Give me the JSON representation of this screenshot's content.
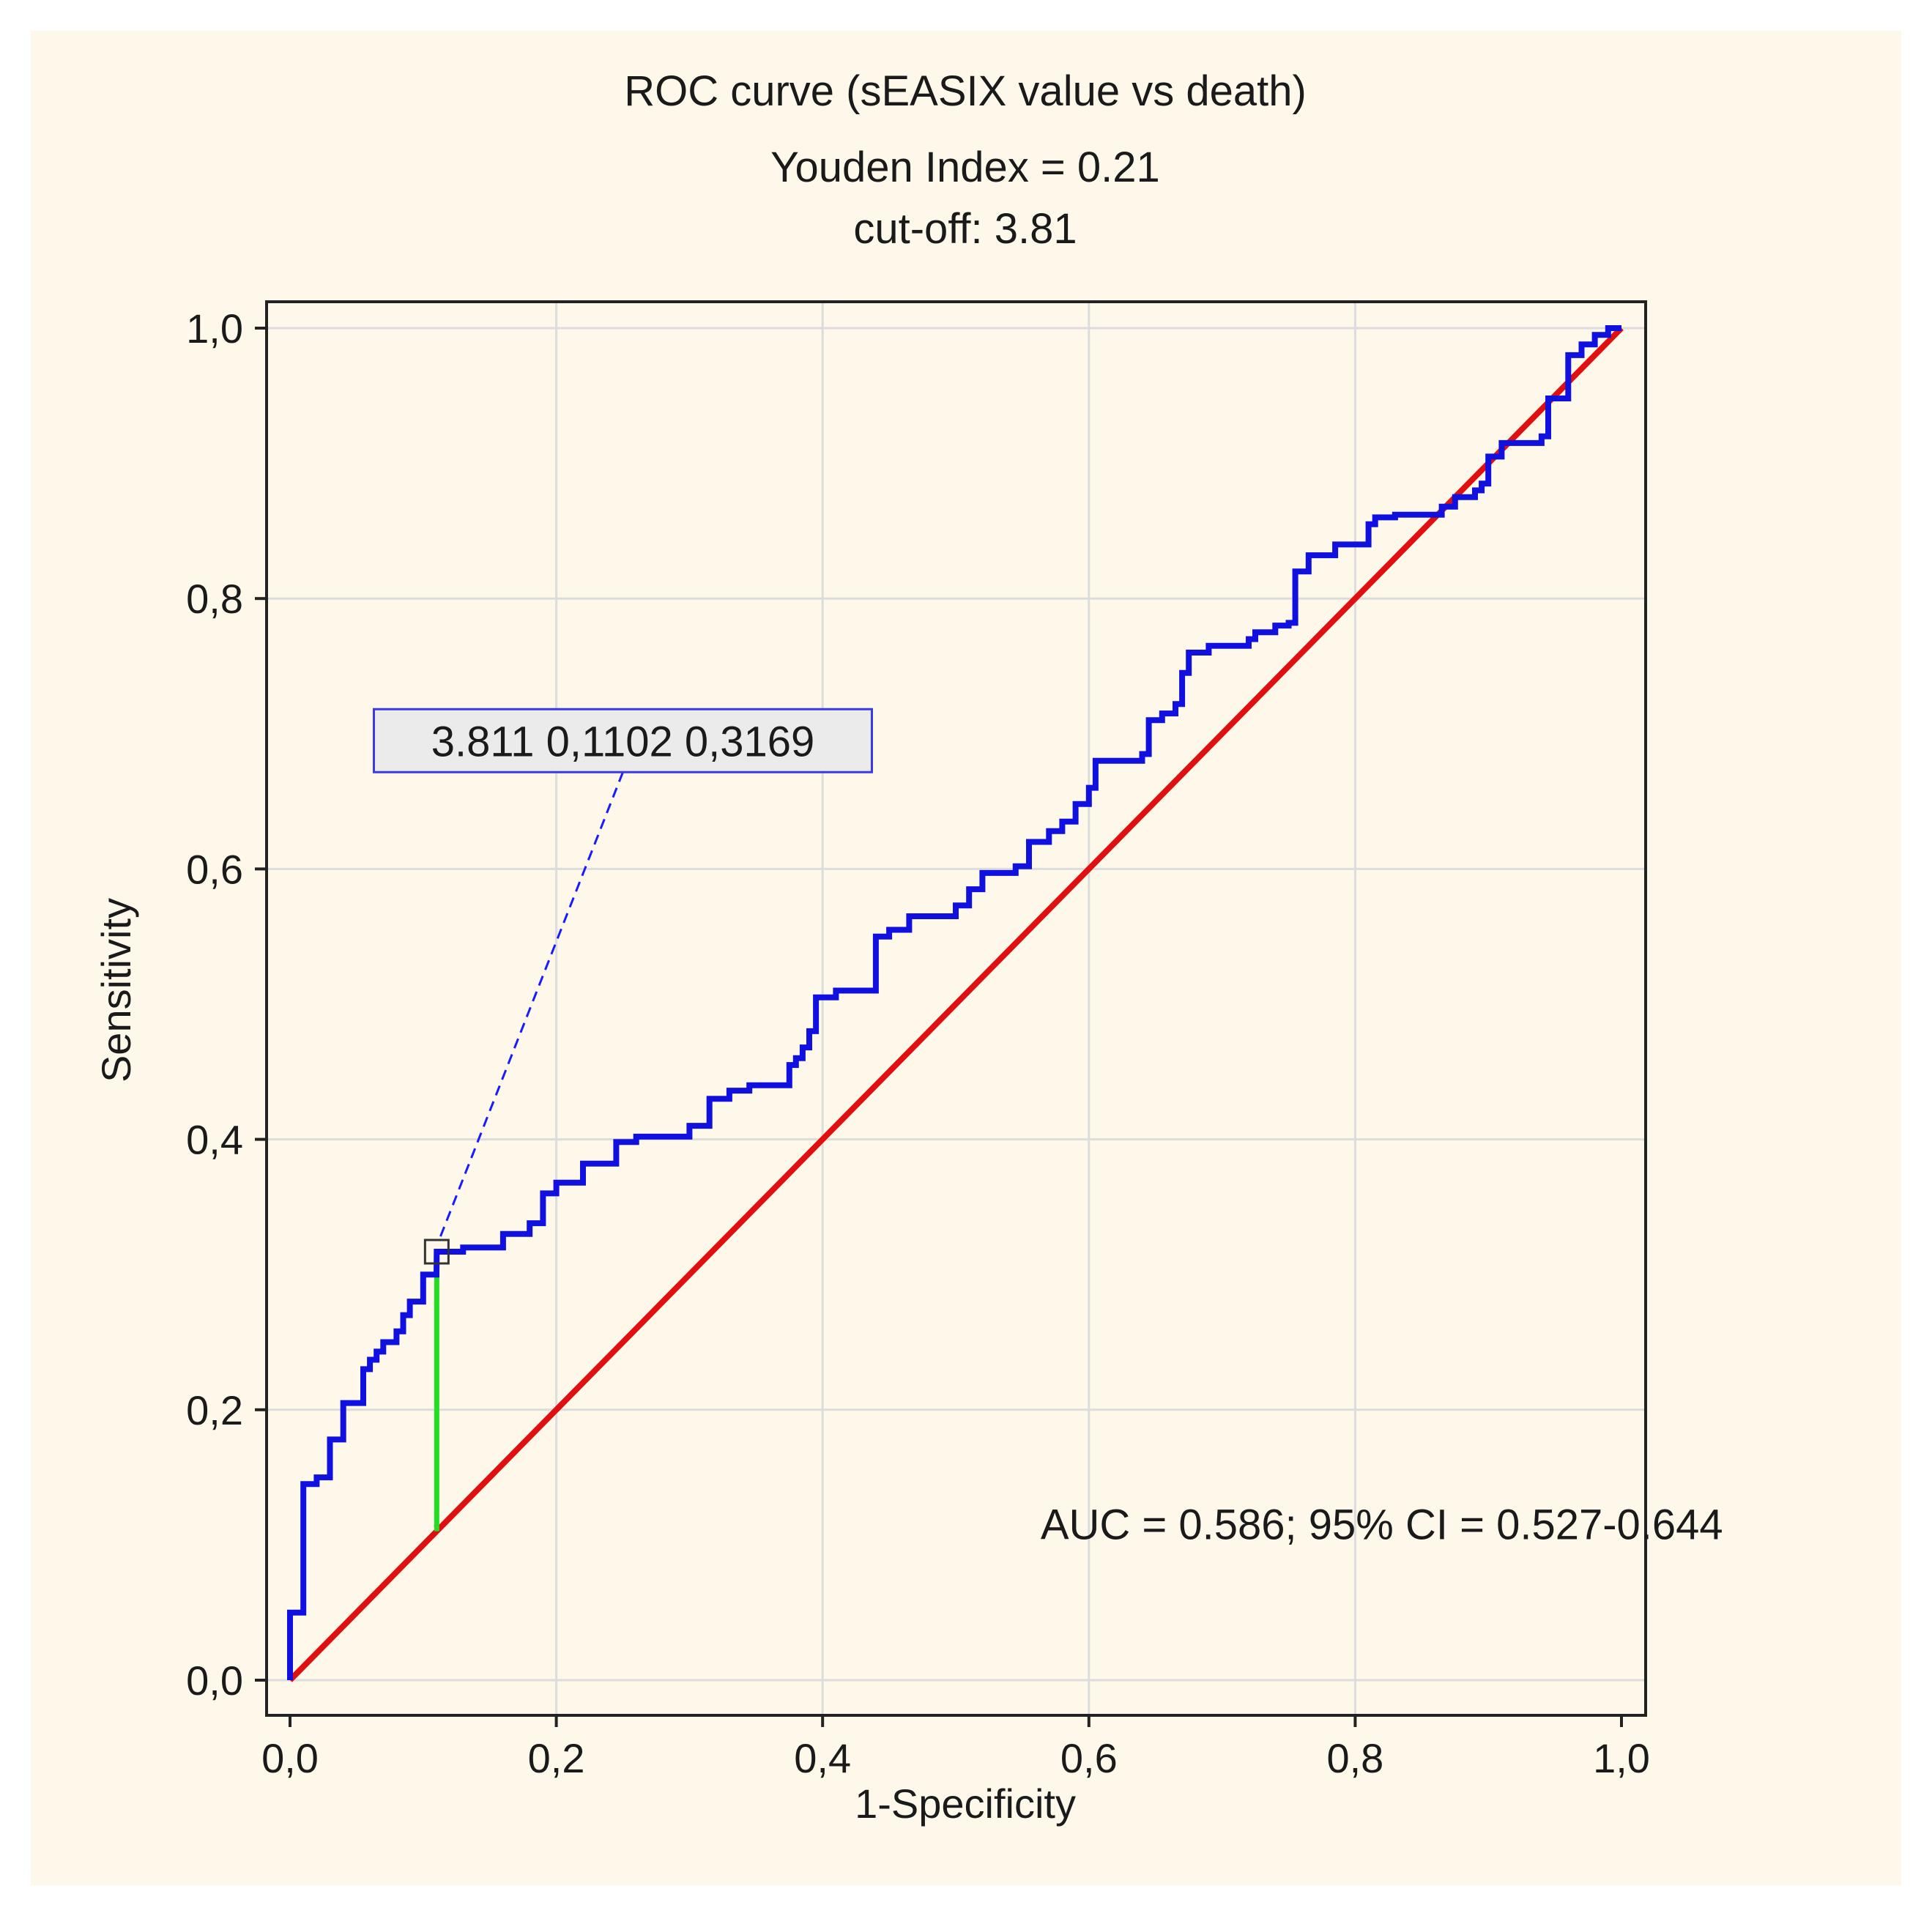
{
  "chart_data": {
    "type": "line",
    "title": "ROC curve (sEASIX value vs death)",
    "subtitle_lines": [
      "Youden Index  = 0.21",
      "cut-off: 3.81"
    ],
    "xlabel": "1-Specificity",
    "ylabel": "Sensitivity",
    "xlim": [
      0,
      1
    ],
    "ylim": [
      0,
      1
    ],
    "grid": true,
    "xticks": [
      0,
      0.2,
      0.4,
      0.6,
      0.8,
      1.0
    ],
    "yticks": [
      0,
      0.2,
      0.4,
      0.6,
      0.8,
      1.0
    ],
    "xtick_labels": [
      "0,0",
      "0,2",
      "0,4",
      "0,6",
      "0,8",
      "1,0"
    ],
    "ytick_labels": [
      "0,0",
      "0,2",
      "0,4",
      "0,6",
      "0,8",
      "1,0"
    ],
    "series": [
      {
        "name": "ROC curve",
        "color": "#1010e0",
        "x": [
          0,
          0,
          0.01,
          0.01,
          0.02,
          0.02,
          0.03,
          0.03,
          0.04,
          0.04,
          0.055,
          0.055,
          0.06,
          0.06,
          0.065,
          0.065,
          0.07,
          0.07,
          0.08,
          0.08,
          0.085,
          0.085,
          0.09,
          0.09,
          0.1,
          0.1,
          0.11,
          0.1102,
          0.13,
          0.13,
          0.16,
          0.16,
          0.18,
          0.18,
          0.19,
          0.19,
          0.2,
          0.2,
          0.22,
          0.22,
          0.245,
          0.245,
          0.26,
          0.26,
          0.3,
          0.3,
          0.315,
          0.315,
          0.33,
          0.33,
          0.345,
          0.345,
          0.375,
          0.375,
          0.38,
          0.38,
          0.385,
          0.385,
          0.39,
          0.39,
          0.395,
          0.395,
          0.41,
          0.41,
          0.44,
          0.44,
          0.45,
          0.45,
          0.465,
          0.465,
          0.5,
          0.5,
          0.51,
          0.51,
          0.52,
          0.52,
          0.545,
          0.545,
          0.555,
          0.555,
          0.57,
          0.57,
          0.58,
          0.58,
          0.59,
          0.59,
          0.6,
          0.6,
          0.605,
          0.605,
          0.64,
          0.64,
          0.645,
          0.645,
          0.655,
          0.655,
          0.665,
          0.665,
          0.67,
          0.67,
          0.675,
          0.675,
          0.69,
          0.69,
          0.72,
          0.72,
          0.725,
          0.725,
          0.74,
          0.74,
          0.75,
          0.75,
          0.755,
          0.755,
          0.765,
          0.765,
          0.785,
          0.785,
          0.81,
          0.81,
          0.815,
          0.815,
          0.83,
          0.83,
          0.865,
          0.865,
          0.875,
          0.875,
          0.89,
          0.89,
          0.895,
          0.895,
          0.9,
          0.9,
          0.91,
          0.91,
          0.94,
          0.94,
          0.945,
          0.945,
          0.96,
          0.96,
          0.97,
          0.97,
          0.98,
          0.98,
          0.99,
          0.99,
          1.0
        ],
        "y": [
          0,
          0.05,
          0.05,
          0.145,
          0.145,
          0.15,
          0.15,
          0.178,
          0.178,
          0.205,
          0.205,
          0.23,
          0.23,
          0.237,
          0.237,
          0.243,
          0.243,
          0.25,
          0.25,
          0.258,
          0.258,
          0.27,
          0.27,
          0.28,
          0.28,
          0.3,
          0.3,
          0.3169,
          0.3169,
          0.32,
          0.32,
          0.33,
          0.33,
          0.338,
          0.338,
          0.36,
          0.36,
          0.368,
          0.368,
          0.382,
          0.382,
          0.398,
          0.398,
          0.402,
          0.402,
          0.41,
          0.41,
          0.43,
          0.43,
          0.436,
          0.436,
          0.44,
          0.44,
          0.455,
          0.455,
          0.46,
          0.46,
          0.468,
          0.468,
          0.48,
          0.48,
          0.505,
          0.505,
          0.51,
          0.51,
          0.55,
          0.55,
          0.555,
          0.555,
          0.565,
          0.565,
          0.573,
          0.573,
          0.585,
          0.585,
          0.597,
          0.597,
          0.602,
          0.602,
          0.62,
          0.62,
          0.628,
          0.628,
          0.635,
          0.635,
          0.648,
          0.648,
          0.66,
          0.66,
          0.68,
          0.68,
          0.685,
          0.685,
          0.71,
          0.71,
          0.715,
          0.715,
          0.722,
          0.722,
          0.745,
          0.745,
          0.76,
          0.76,
          0.765,
          0.765,
          0.77,
          0.77,
          0.775,
          0.775,
          0.78,
          0.78,
          0.782,
          0.782,
          0.82,
          0.82,
          0.832,
          0.832,
          0.84,
          0.84,
          0.855,
          0.855,
          0.86,
          0.86,
          0.862,
          0.862,
          0.868,
          0.868,
          0.875,
          0.875,
          0.88,
          0.88,
          0.885,
          0.885,
          0.905,
          0.905,
          0.915,
          0.915,
          0.92,
          0.92,
          0.948,
          0.948,
          0.98,
          0.98,
          0.988,
          0.988,
          0.995,
          0.995,
          1.0,
          1.0
        ]
      },
      {
        "name": "Reference line",
        "color": "#e01010",
        "x": [
          0,
          1
        ],
        "y": [
          0,
          1
        ]
      }
    ],
    "youden_segment": {
      "x": 0.1102,
      "y_from": 0.1102,
      "y_to": 0.3169,
      "color": "#22dd22"
    },
    "cutoff_point": {
      "x": 0.1102,
      "y": 0.3169
    },
    "annotations": {
      "cutoff_label": "3.811 0,1102 0,3169",
      "cutoff_label_anchor": [
        0.25,
        0.69
      ],
      "auc_text": "AUC = 0.586; 95% CI = 0.527-0.644",
      "auc_anchor": [
        0.82,
        0.115
      ]
    }
  }
}
